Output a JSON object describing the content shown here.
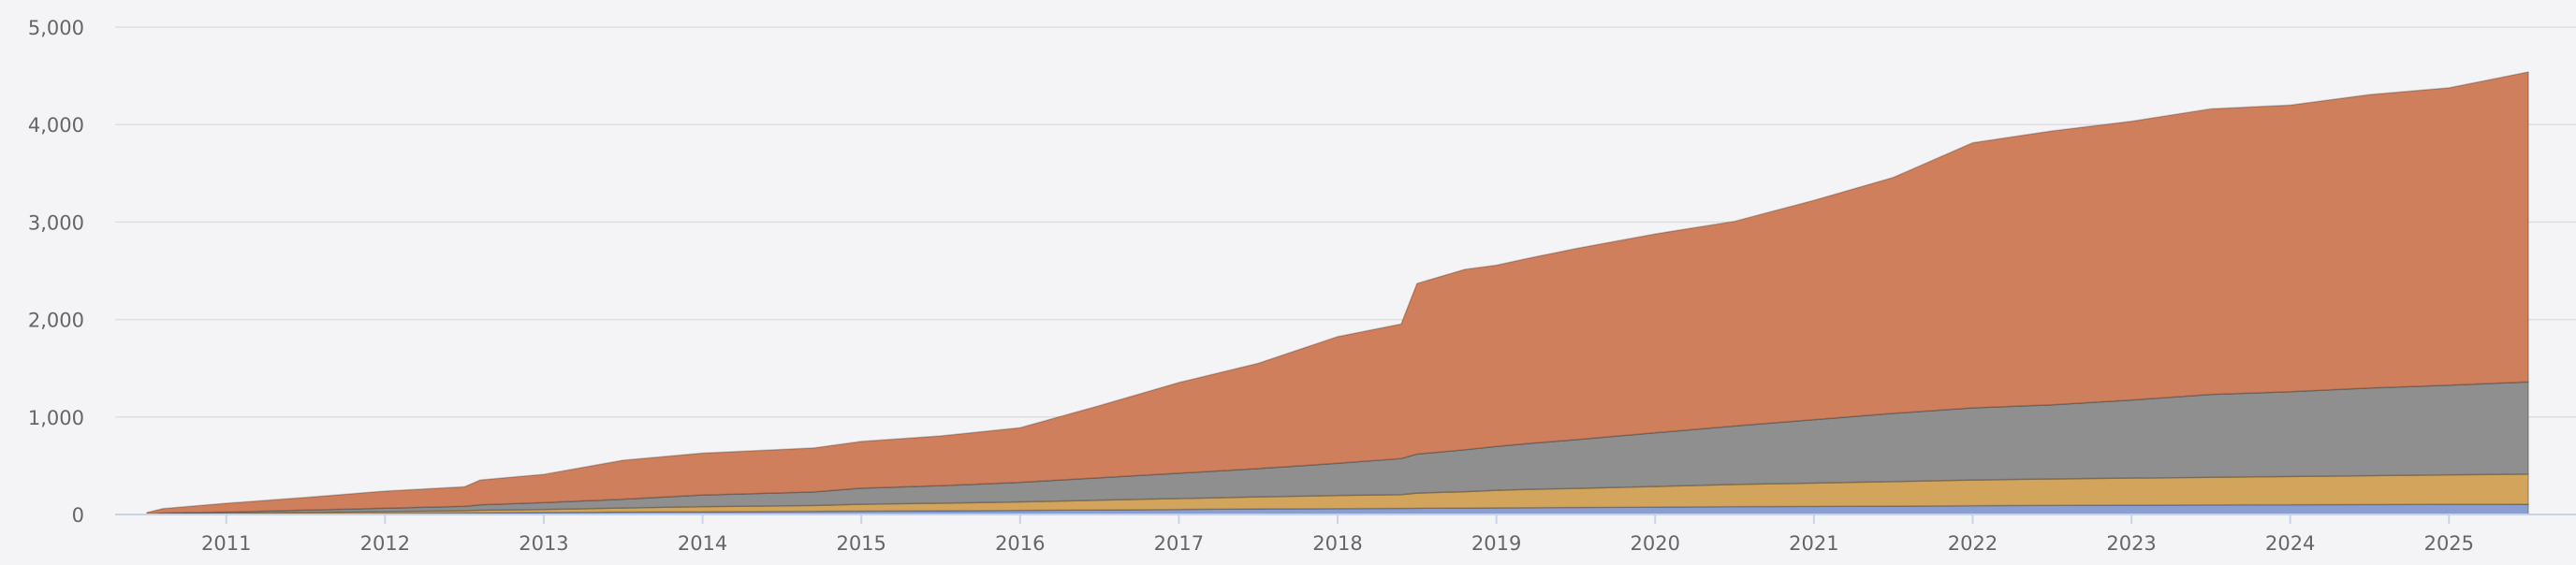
{
  "chart_data": {
    "type": "area",
    "stacked": true,
    "title": "",
    "xlabel": "",
    "ylabel": "",
    "grid": true,
    "legend": "none",
    "x_range": [
      2010.3,
      2025.8
    ],
    "ylim": [
      0,
      5000
    ],
    "y_ticks": [
      "0",
      "1,000",
      "2,000",
      "3,000",
      "4,000",
      "5,000"
    ],
    "y_tick_values": [
      0,
      1000,
      2000,
      3000,
      4000,
      5000
    ],
    "x_ticks": [
      "2011",
      "2012",
      "2013",
      "2014",
      "2015",
      "2016",
      "2017",
      "2018",
      "2019",
      "2020",
      "2021",
      "2022",
      "2023",
      "2024",
      "2025"
    ],
    "x_tick_values": [
      2011,
      2012,
      2013,
      2014,
      2015,
      2016,
      2017,
      2018,
      2019,
      2020,
      2021,
      2022,
      2023,
      2024,
      2025
    ],
    "x": [
      2010.5,
      2010.6,
      2011.0,
      2011.5,
      2012.0,
      2012.5,
      2012.6,
      2013.0,
      2013.5,
      2014.0,
      2014.7,
      2015.0,
      2015.5,
      2016.0,
      2016.5,
      2017.0,
      2017.5,
      2018.0,
      2018.4,
      2018.5,
      2018.8,
      2019.0,
      2019.2,
      2019.5,
      2020.0,
      2020.5,
      2021.0,
      2021.5,
      2022.0,
      2022.5,
      2023.0,
      2023.5,
      2024.0,
      2024.5,
      2025.0,
      2025.5
    ],
    "series": [
      {
        "color": "#8a9fd0",
        "values": [
          2,
          4,
          5,
          8,
          12,
          15,
          17,
          20,
          25,
          28,
          32,
          35,
          38,
          42,
          47,
          52,
          57,
          60,
          62,
          64,
          66,
          68,
          70,
          72,
          76,
          80,
          83,
          86,
          90,
          93,
          96,
          98,
          100,
          102,
          104,
          105
        ]
      },
      {
        "color": "#d2a45c",
        "values": [
          1,
          3,
          6,
          12,
          18,
          24,
          27,
          32,
          42,
          52,
          60,
          70,
          78,
          88,
          100,
          112,
          124,
          135,
          142,
          156,
          168,
          180,
          188,
          196,
          212,
          228,
          240,
          252,
          264,
          272,
          278,
          284,
          290,
          296,
          303,
          310
        ]
      },
      {
        "color": "#8f8f8f",
        "values": [
          2,
          8,
          14,
          25,
          35,
          45,
          55,
          70,
          90,
          120,
          140,
          165,
          180,
          200,
          230,
          260,
          290,
          330,
          370,
          400,
          430,
          450,
          470,
          500,
          550,
          600,
          650,
          700,
          740,
          760,
          800,
          850,
          870,
          900,
          920,
          945
        ]
      },
      {
        "color": "#cf7f5c",
        "values": [
          15,
          45,
          90,
          130,
          175,
          200,
          255,
          290,
          400,
          430,
          450,
          480,
          510,
          560,
          740,
          930,
          1080,
          1300,
          1380,
          1750,
          1850,
          1860,
          1900,
          1960,
          2040,
          2100,
          2250,
          2420,
          2720,
          2810,
          2860,
          2930,
          2940,
          3010,
          3050,
          3180
        ]
      }
    ]
  }
}
